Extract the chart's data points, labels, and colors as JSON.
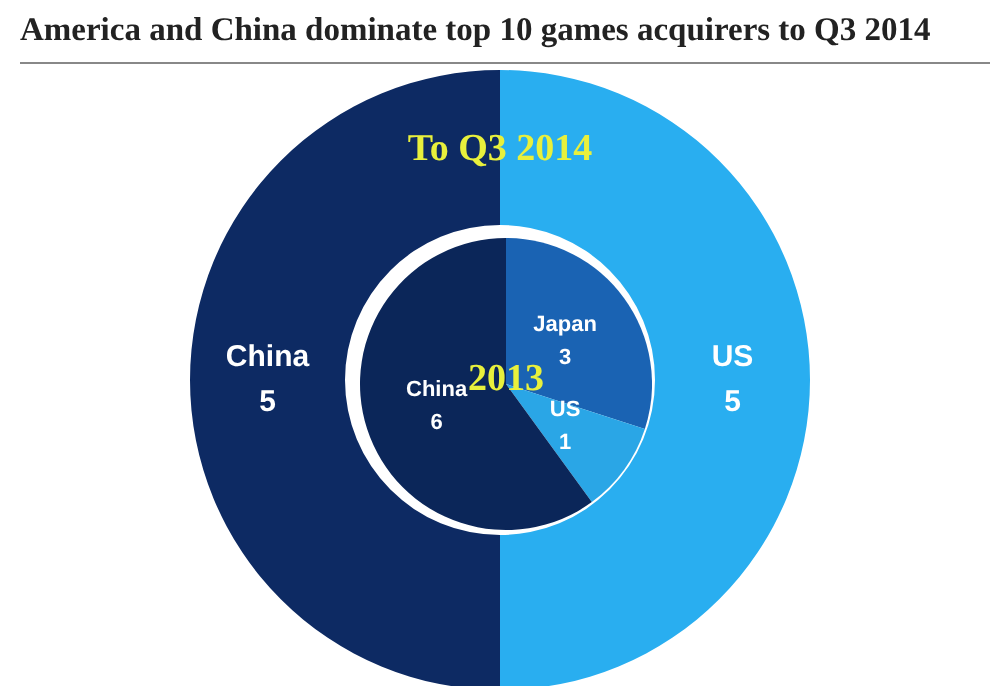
{
  "chart_data": [
    {
      "type": "donut",
      "title": "America and China dominate top 10 games acquirers to Q3 2014",
      "annotations": [
        "To Q3 2014"
      ],
      "categories": [
        "US",
        "China"
      ],
      "values": [
        5,
        5
      ],
      "colors": [
        "#29aef0",
        "#0d2a63"
      ],
      "data_labels": true
    },
    {
      "type": "pie",
      "title": "2013",
      "categories": [
        "Japan",
        "US",
        "China"
      ],
      "values": [
        3,
        1,
        6
      ],
      "colors": [
        "#1a63b3",
        "#2aa6e6",
        "#0b2659"
      ],
      "data_labels": true
    }
  ]
}
